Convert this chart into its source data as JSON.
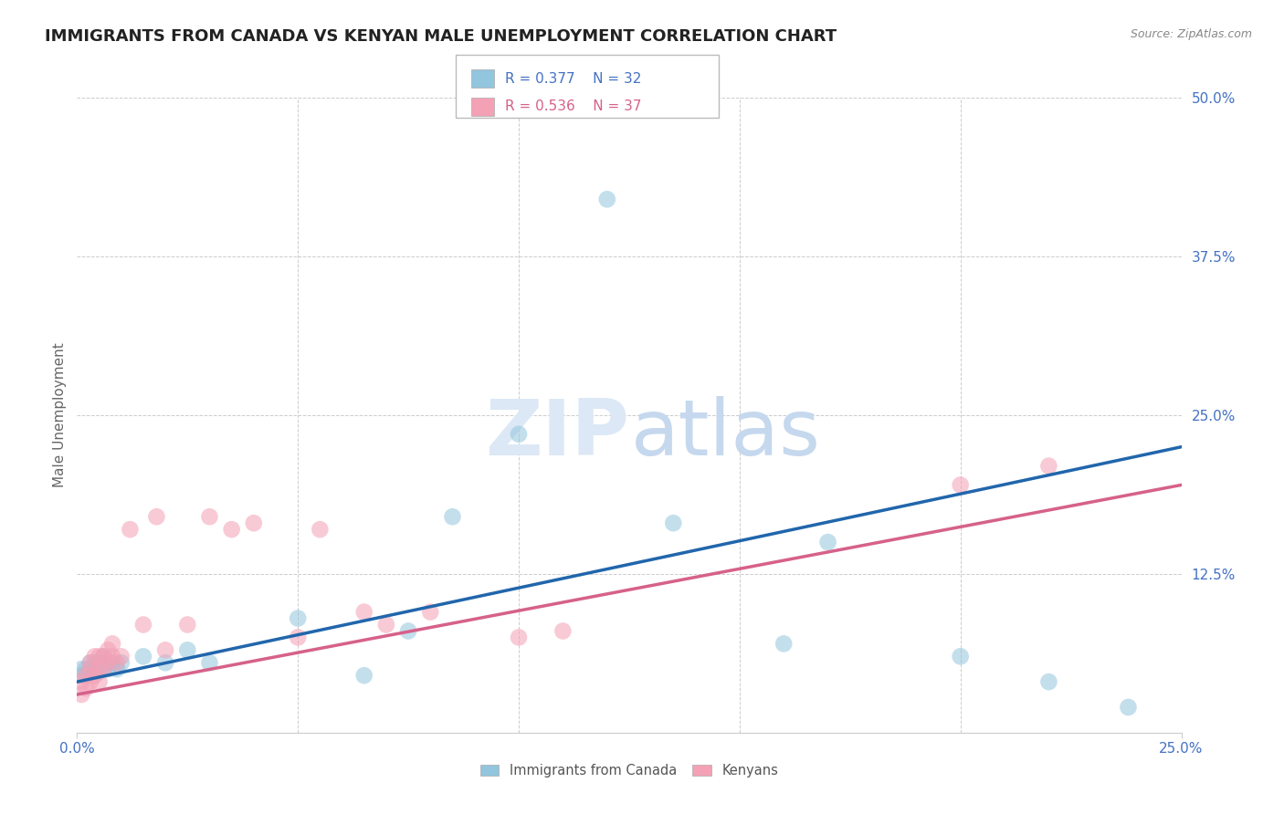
{
  "title": "IMMIGRANTS FROM CANADA VS KENYAN MALE UNEMPLOYMENT CORRELATION CHART",
  "source": "Source: ZipAtlas.com",
  "ylabel": "Male Unemployment",
  "legend_blue_r": "R = 0.377",
  "legend_blue_n": "N = 32",
  "legend_pink_r": "R = 0.536",
  "legend_pink_n": "N = 37",
  "blue_scatter_color": "#92c5de",
  "pink_scatter_color": "#f4a0b5",
  "blue_line_color": "#2166ac",
  "pink_line_color": "#d6618a",
  "axis_tick_color": "#4472c4",
  "grid_color": "#cccccc",
  "bg_color": "#ffffff",
  "title_fontsize": 13,
  "tick_fontsize": 11,
  "blue_x": [
    0.001,
    0.001,
    0.002,
    0.002,
    0.003,
    0.003,
    0.004,
    0.004,
    0.005,
    0.005,
    0.006,
    0.006,
    0.007,
    0.008,
    0.009,
    0.01,
    0.015,
    0.02,
    0.025,
    0.03,
    0.05,
    0.065,
    0.075,
    0.085,
    0.1,
    0.12,
    0.135,
    0.16,
    0.17,
    0.2,
    0.22,
    0.238
  ],
  "blue_y": [
    0.045,
    0.05,
    0.045,
    0.05,
    0.048,
    0.055,
    0.05,
    0.055,
    0.048,
    0.055,
    0.05,
    0.06,
    0.05,
    0.055,
    0.05,
    0.055,
    0.06,
    0.055,
    0.065,
    0.055,
    0.09,
    0.045,
    0.08,
    0.17,
    0.235,
    0.42,
    0.165,
    0.07,
    0.15,
    0.06,
    0.04,
    0.02
  ],
  "pink_x": [
    0.001,
    0.001,
    0.002,
    0.002,
    0.003,
    0.003,
    0.003,
    0.004,
    0.004,
    0.005,
    0.005,
    0.005,
    0.006,
    0.006,
    0.007,
    0.007,
    0.008,
    0.008,
    0.009,
    0.01,
    0.012,
    0.015,
    0.018,
    0.02,
    0.025,
    0.03,
    0.035,
    0.04,
    0.05,
    0.055,
    0.065,
    0.07,
    0.08,
    0.1,
    0.11,
    0.2,
    0.22
  ],
  "pink_y": [
    0.03,
    0.04,
    0.035,
    0.045,
    0.04,
    0.05,
    0.055,
    0.045,
    0.06,
    0.04,
    0.05,
    0.06,
    0.05,
    0.06,
    0.055,
    0.065,
    0.06,
    0.07,
    0.055,
    0.06,
    0.16,
    0.085,
    0.17,
    0.065,
    0.085,
    0.17,
    0.16,
    0.165,
    0.075,
    0.16,
    0.095,
    0.085,
    0.095,
    0.075,
    0.08,
    0.195,
    0.21
  ],
  "blue_line_x0": 0.0,
  "blue_line_x1": 0.25,
  "blue_line_y0": 0.04,
  "blue_line_y1": 0.225,
  "pink_line_x0": 0.0,
  "pink_line_x1": 0.25,
  "pink_line_y0": 0.03,
  "pink_line_y1": 0.195,
  "xlim": [
    0.0,
    0.25
  ],
  "ylim": [
    0.0,
    0.5
  ],
  "yticks": [
    0.0,
    0.125,
    0.25,
    0.375,
    0.5
  ],
  "ytick_labels": [
    "",
    "12.5%",
    "25.0%",
    "37.5%",
    "50.0%"
  ],
  "xtick_positions_show": [
    0.0,
    0.25
  ],
  "xtick_labels_show": [
    "0.0%",
    "25.0%"
  ],
  "xtick_grid_positions": [
    0.05,
    0.1,
    0.15,
    0.2
  ]
}
